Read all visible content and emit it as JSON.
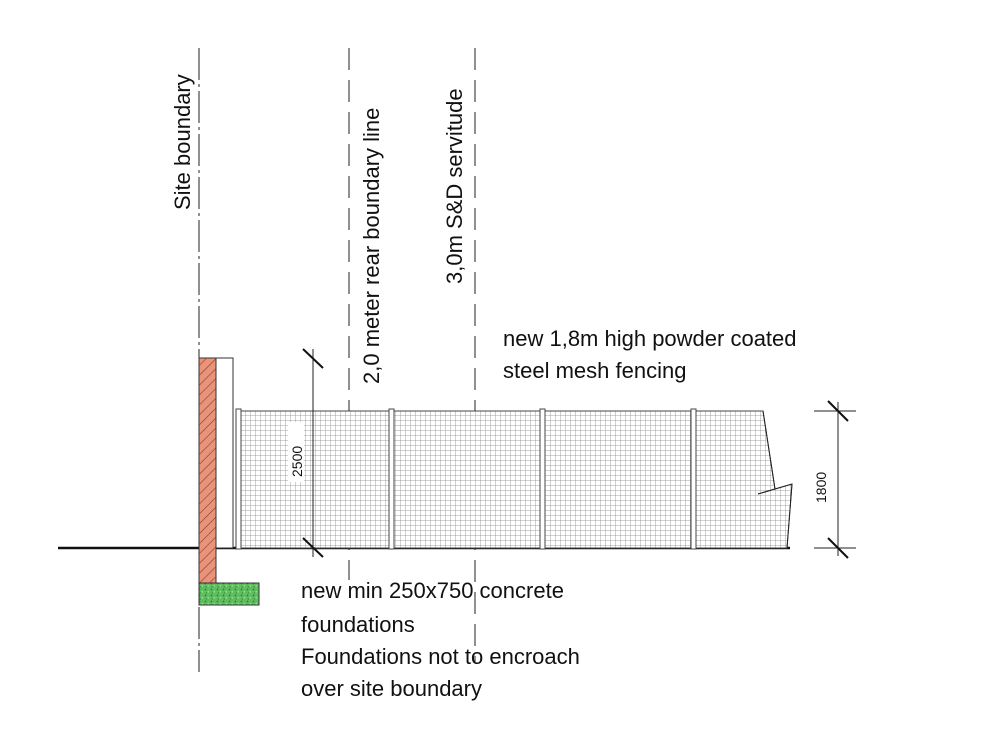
{
  "labels": {
    "site_boundary": "Site boundary",
    "rear_boundary_line": "2,0 meter rear boundary line",
    "servitude": "3,0m S&D servitude",
    "fence_note_line1": "new 1,8m high powder coated",
    "fence_note_line2": "steel mesh fencing",
    "foundation_note_line1": "new min 250x750 concrete",
    "foundation_note_line2": "foundations",
    "foundation_note_line3": "Foundations not to encroach",
    "foundation_note_line4": "over site boundary"
  },
  "dimensions": {
    "wall_height": "2500",
    "fence_height": "1800"
  },
  "colors": {
    "brick_wall": "#e8937a",
    "foundation": "#5fbf5f",
    "line": "#222222"
  }
}
